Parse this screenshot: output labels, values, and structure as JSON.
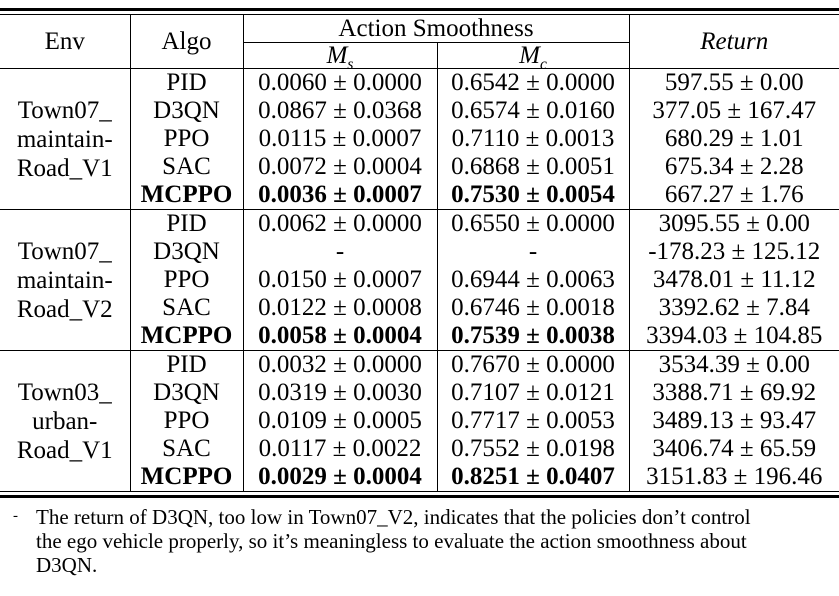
{
  "colors": {
    "text": "#000000",
    "background": "#ffffff",
    "rule": "#000000"
  },
  "header": {
    "env": "Env",
    "algo": "Algo",
    "action_smoothness": "Action Smoothness",
    "ms_base": "M",
    "ms_sub": "s",
    "mc_base": "M",
    "mc_sub": "c",
    "return_label": "Return"
  },
  "groups": [
    {
      "env": [
        "Town07_",
        "maintain-",
        "Road_V1"
      ],
      "rows": [
        {
          "algo": "PID",
          "ms": "0.0060 ± 0.0000",
          "mc": "0.6542 ± 0.0000",
          "ret": "597.55 ± 0.00",
          "bold": false
        },
        {
          "algo": "D3QN",
          "ms": "0.0867 ± 0.0368",
          "mc": "0.6574 ± 0.0160",
          "ret": "377.05 ± 167.47",
          "bold": false
        },
        {
          "algo": "PPO",
          "ms": "0.0115 ± 0.0007",
          "mc": "0.7110 ± 0.0013",
          "ret": "680.29 ± 1.01",
          "bold": false
        },
        {
          "algo": "SAC",
          "ms": "0.0072 ± 0.0004",
          "mc": "0.6868 ± 0.0051",
          "ret": "675.34 ± 2.28",
          "bold": false
        },
        {
          "algo": "MCPPO",
          "ms": "0.0036 ± 0.0007",
          "mc": "0.7530 ± 0.0054",
          "ret": "667.27 ± 1.76",
          "bold": true
        }
      ]
    },
    {
      "env": [
        "Town07_",
        "maintain-",
        "Road_V2"
      ],
      "rows": [
        {
          "algo": "PID",
          "ms": "0.0062 ± 0.0000",
          "mc": "0.6550 ± 0.0000",
          "ret": "3095.55 ± 0.00",
          "bold": false
        },
        {
          "algo": "D3QN",
          "ms": "-",
          "mc": "-",
          "ret": "-178.23 ± 125.12",
          "bold": false
        },
        {
          "algo": "PPO",
          "ms": "0.0150 ± 0.0007",
          "mc": "0.6944 ± 0.0063",
          "ret": "3478.01 ± 11.12",
          "bold": false
        },
        {
          "algo": "SAC",
          "ms": "0.0122 ± 0.0008",
          "mc": "0.6746 ± 0.0018",
          "ret": "3392.62 ± 7.84",
          "bold": false
        },
        {
          "algo": "MCPPO",
          "ms": "0.0058 ± 0.0004",
          "mc": "0.7539 ± 0.0038",
          "ret": "3394.03 ± 104.85",
          "bold": true
        }
      ]
    },
    {
      "env": [
        "Town03_",
        "urban-",
        "Road_V1"
      ],
      "rows": [
        {
          "algo": "PID",
          "ms": "0.0032 ± 0.0000",
          "mc": "0.7670 ± 0.0000",
          "ret": "3534.39 ± 0.00",
          "bold": false
        },
        {
          "algo": "D3QN",
          "ms": "0.0319 ± 0.0030",
          "mc": "0.7107 ± 0.0121",
          "ret": "3388.71 ± 69.92",
          "bold": false
        },
        {
          "algo": "PPO",
          "ms": "0.0109 ± 0.0005",
          "mc": "0.7717 ± 0.0053",
          "ret": "3489.13 ± 93.47",
          "bold": false
        },
        {
          "algo": "SAC",
          "ms": "0.0117 ± 0.0022",
          "mc": "0.7552 ± 0.0198",
          "ret": "3406.74 ± 65.59",
          "bold": false
        },
        {
          "algo": "MCPPO",
          "ms": "0.0029 ± 0.0004",
          "mc": "0.8251 ± 0.0407",
          "ret": "3151.83 ± 196.46",
          "bold": true
        }
      ]
    }
  ],
  "footnote": {
    "marker": "-",
    "lines": [
      "The return of D3QN, too low in Town07_V2, indicates that the policies don’t control",
      "the ego vehicle properly, so it’s meaningless to evaluate the action smoothness about",
      "D3QN."
    ]
  }
}
